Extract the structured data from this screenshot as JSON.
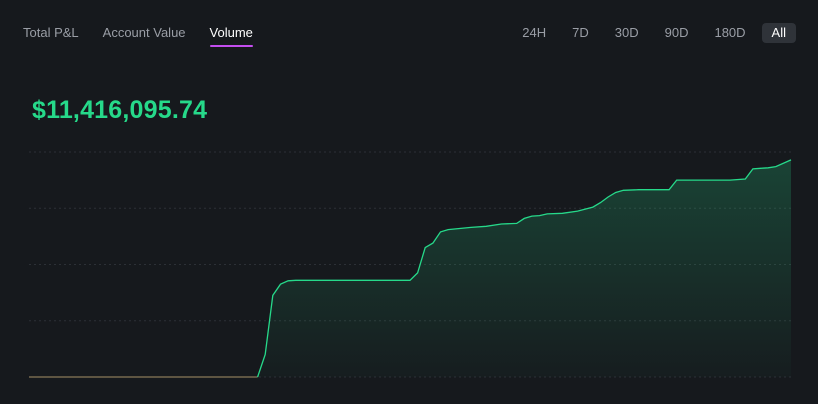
{
  "tabs": [
    {
      "label": "Total P&L",
      "active": false
    },
    {
      "label": "Account Value",
      "active": false
    },
    {
      "label": "Volume",
      "active": true
    }
  ],
  "ranges": [
    {
      "label": "24H",
      "active": false
    },
    {
      "label": "7D",
      "active": false
    },
    {
      "label": "30D",
      "active": false
    },
    {
      "label": "90D",
      "active": false
    },
    {
      "label": "180D",
      "active": false
    },
    {
      "label": "All",
      "active": true
    }
  ],
  "summary": {
    "value": "$11,416,095.74"
  },
  "colors": {
    "accent": "#26d98a",
    "tab_underline": "#c44ef0",
    "baseline": "#8a7a5a"
  },
  "chart_data": {
    "type": "area",
    "x_index": [
      0,
      30,
      31,
      32,
      33,
      34,
      35,
      40,
      50,
      51,
      52,
      53,
      54,
      55,
      58,
      60,
      62,
      64,
      65,
      66,
      67,
      68,
      70,
      72,
      74,
      75,
      76,
      77,
      78,
      80,
      82,
      84,
      85,
      86,
      87,
      88,
      90,
      92,
      94,
      95,
      96,
      97,
      98,
      100
    ],
    "values": [
      0,
      0,
      0.4,
      1.45,
      1.65,
      1.71,
      1.72,
      1.72,
      1.72,
      1.85,
      2.3,
      2.38,
      2.58,
      2.62,
      2.66,
      2.68,
      2.72,
      2.73,
      2.82,
      2.86,
      2.87,
      2.9,
      2.91,
      2.95,
      3.02,
      3.1,
      3.2,
      3.28,
      3.32,
      3.33,
      3.33,
      3.33,
      3.5,
      3.5,
      3.5,
      3.5,
      3.5,
      3.5,
      3.52,
      3.7,
      3.71,
      3.72,
      3.74,
      3.86
    ],
    "y_max": 4,
    "grid": true
  }
}
